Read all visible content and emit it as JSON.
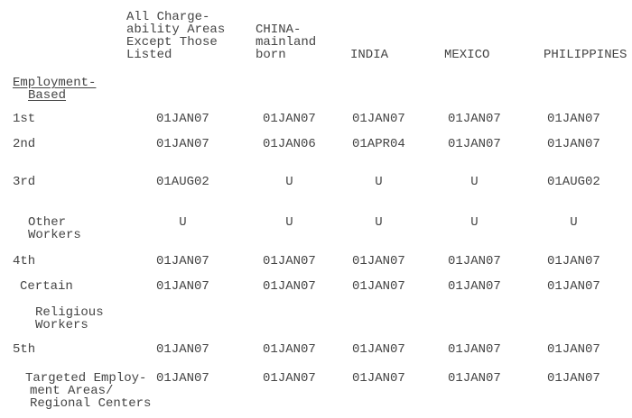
{
  "page": {
    "background_color": "#ffffff",
    "text_color": "#444444"
  },
  "table": {
    "column_headers": [
      "All Charge-\nability Areas\nExcept Those\nListed",
      "CHINA-\nmainland\nborn",
      "INDIA",
      "MEXICO",
      "PHILIPPINES"
    ],
    "section": {
      "line1": "Employment-",
      "line2": "Based"
    },
    "rows": [
      {
        "label_lines": [
          "1st"
        ],
        "values": [
          "01JAN07",
          "01JAN07",
          "01JAN07",
          "01JAN07",
          "01JAN07"
        ]
      },
      {
        "label_lines": [
          "2nd"
        ],
        "values": [
          "01JAN07",
          "01JAN06",
          "01APR04",
          "01JAN07",
          "01JAN07"
        ]
      },
      {
        "label_lines": [
          "3rd"
        ],
        "values": [
          "01AUG02",
          "U",
          "U",
          "U",
          "01AUG02"
        ]
      },
      {
        "label_lines": [
          "Other",
          "Workers"
        ],
        "values": [
          "U",
          "U",
          "U",
          "U",
          "U"
        ]
      },
      {
        "label_lines": [
          "4th"
        ],
        "values": [
          "01JAN07",
          "01JAN07",
          "01JAN07",
          "01JAN07",
          "01JAN07"
        ]
      },
      {
        "label_lines": [
          "Certain"
        ],
        "values": [
          "01JAN07",
          "01JAN07",
          "01JAN07",
          "01JAN07",
          "01JAN07"
        ]
      },
      {
        "label_lines": [
          "Religious",
          "Workers"
        ],
        "values": []
      },
      {
        "label_lines": [
          "5th"
        ],
        "values": [
          "01JAN07",
          "01JAN07",
          "01JAN07",
          "01JAN07",
          "01JAN07"
        ]
      },
      {
        "label_lines": [
          "Targeted Employ-",
          "ment Areas/",
          "Regional Centers"
        ],
        "values": [
          "01JAN07",
          "01JAN07",
          "01JAN07",
          "01JAN07",
          "01JAN07"
        ]
      }
    ]
  }
}
